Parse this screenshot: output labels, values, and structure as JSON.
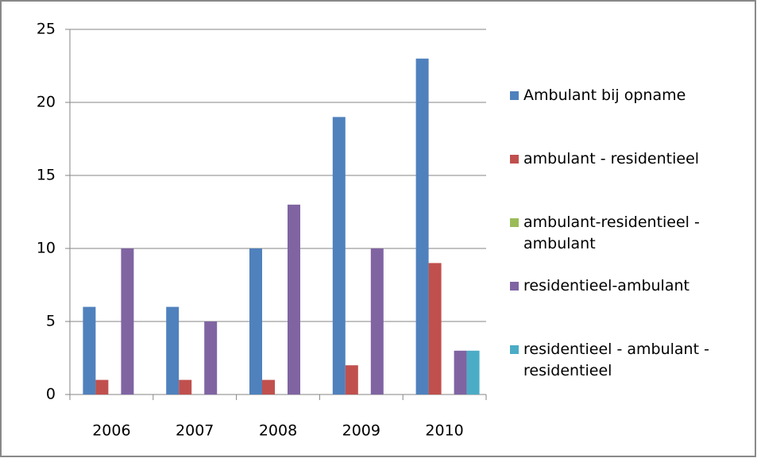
{
  "chart_data": {
    "type": "bar",
    "categories": [
      "2006",
      "2007",
      "2008",
      "2009",
      "2010"
    ],
    "series": [
      {
        "name": "Ambulant bij opname",
        "color": "#4f81bd",
        "values": [
          6,
          6,
          10,
          19,
          23
        ]
      },
      {
        "name": "ambulant - residentieel",
        "color": "#c0504d",
        "values": [
          1,
          1,
          1,
          2,
          9
        ]
      },
      {
        "name": "ambulant-residentieel - ambulant",
        "color": "#9bbb59",
        "values": [
          0,
          0,
          0,
          0,
          0
        ]
      },
      {
        "name": "residentieel-ambulant",
        "color": "#8064a2",
        "values": [
          10,
          5,
          13,
          10,
          3
        ]
      },
      {
        "name": "residentieel - ambulant - residentieel",
        "color": "#4bacc6",
        "values": [
          0,
          0,
          0,
          0,
          3
        ]
      }
    ],
    "ylim": [
      0,
      25
    ],
    "yticks": [
      0,
      5,
      10,
      15,
      20,
      25
    ],
    "grid": true,
    "legend": "right"
  }
}
